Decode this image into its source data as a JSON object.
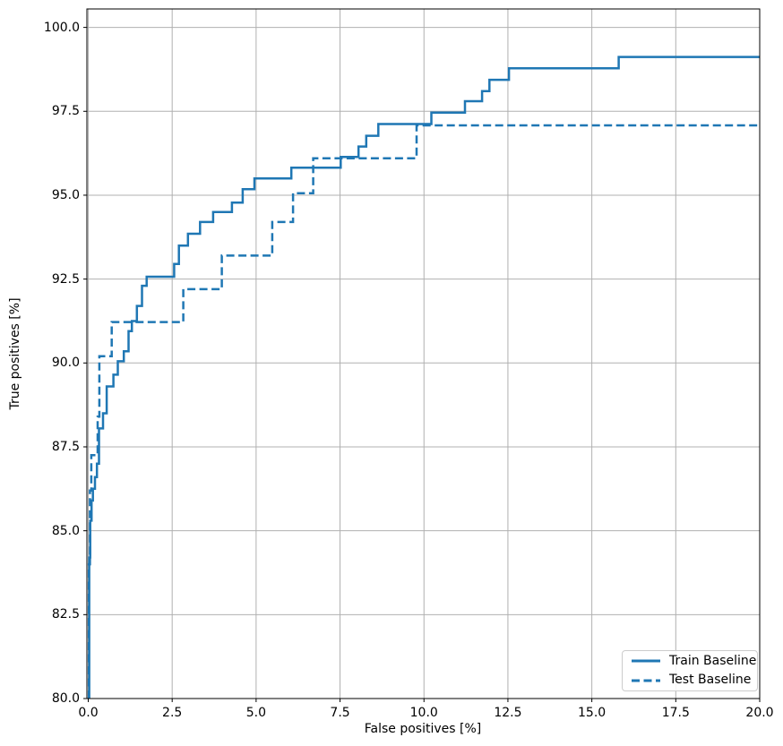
{
  "figure": {
    "bg_color": "#ffffff",
    "accent_color": "#1f77b4",
    "grid_color": "#b0b0b0",
    "spine_color": "#000000",
    "text_color": "#000000"
  },
  "chart_data": {
    "type": "line",
    "subtype": "step-roc",
    "title": "",
    "xlabel": "False positives [%]",
    "ylabel": "True positives [%]",
    "xlim": [
      -0.04,
      20.0
    ],
    "ylim": [
      80.0,
      100.55
    ],
    "xticks": [
      0.0,
      2.5,
      5.0,
      7.5,
      10.0,
      12.5,
      15.0,
      17.5,
      20.0
    ],
    "yticks": [
      80.0,
      82.5,
      85.0,
      87.5,
      90.0,
      92.5,
      95.0,
      97.5,
      100.0
    ],
    "xtick_labels": [
      "0.0",
      "2.5",
      "5.0",
      "7.5",
      "10.0",
      "12.5",
      "15.0",
      "17.5",
      "20.0"
    ],
    "ytick_labels": [
      "80.0",
      "82.5",
      "85.0",
      "87.5",
      "90.0",
      "92.5",
      "95.0",
      "97.5",
      "100.0"
    ],
    "grid": true,
    "legend_position": "lower right",
    "series": [
      {
        "name": "Train Baseline",
        "style": "solid",
        "color": "#1f77b4",
        "points": [
          [
            0.03,
            80.0
          ],
          [
            0.03,
            84.2
          ],
          [
            0.06,
            84.2
          ],
          [
            0.06,
            85.3
          ],
          [
            0.1,
            85.3
          ],
          [
            0.1,
            85.9
          ],
          [
            0.14,
            85.9
          ],
          [
            0.14,
            86.25
          ],
          [
            0.2,
            86.25
          ],
          [
            0.2,
            86.6
          ],
          [
            0.26,
            86.6
          ],
          [
            0.26,
            87.0
          ],
          [
            0.32,
            87.0
          ],
          [
            0.32,
            88.05
          ],
          [
            0.44,
            88.05
          ],
          [
            0.44,
            88.5
          ],
          [
            0.55,
            88.5
          ],
          [
            0.55,
            89.3
          ],
          [
            0.75,
            89.3
          ],
          [
            0.75,
            89.65
          ],
          [
            0.88,
            89.65
          ],
          [
            0.88,
            90.05
          ],
          [
            1.06,
            90.05
          ],
          [
            1.06,
            90.35
          ],
          [
            1.2,
            90.35
          ],
          [
            1.2,
            90.95
          ],
          [
            1.3,
            90.95
          ],
          [
            1.3,
            91.25
          ],
          [
            1.45,
            91.25
          ],
          [
            1.45,
            91.7
          ],
          [
            1.6,
            91.7
          ],
          [
            1.6,
            92.3
          ],
          [
            1.74,
            92.3
          ],
          [
            1.74,
            92.57
          ],
          [
            2.56,
            92.57
          ],
          [
            2.56,
            92.95
          ],
          [
            2.7,
            92.95
          ],
          [
            2.7,
            93.5
          ],
          [
            2.97,
            93.5
          ],
          [
            2.97,
            93.85
          ],
          [
            3.33,
            93.85
          ],
          [
            3.33,
            94.2
          ],
          [
            3.72,
            94.2
          ],
          [
            3.72,
            94.5
          ],
          [
            4.28,
            94.5
          ],
          [
            4.28,
            94.78
          ],
          [
            4.6,
            94.78
          ],
          [
            4.6,
            95.18
          ],
          [
            4.95,
            95.18
          ],
          [
            4.95,
            95.5
          ],
          [
            6.05,
            95.5
          ],
          [
            6.05,
            95.82
          ],
          [
            7.52,
            95.82
          ],
          [
            7.52,
            96.14
          ],
          [
            8.05,
            96.14
          ],
          [
            8.05,
            96.45
          ],
          [
            8.28,
            96.45
          ],
          [
            8.28,
            96.77
          ],
          [
            8.64,
            96.77
          ],
          [
            8.64,
            97.12
          ],
          [
            10.22,
            97.12
          ],
          [
            10.22,
            97.46
          ],
          [
            11.22,
            97.46
          ],
          [
            11.22,
            97.8
          ],
          [
            11.73,
            97.8
          ],
          [
            11.73,
            98.1
          ],
          [
            11.95,
            98.1
          ],
          [
            11.95,
            98.44
          ],
          [
            12.53,
            98.44
          ],
          [
            12.53,
            98.78
          ],
          [
            15.8,
            98.78
          ],
          [
            15.8,
            99.12
          ],
          [
            20.0,
            99.12
          ]
        ]
      },
      {
        "name": "Test Baseline",
        "style": "dashed",
        "color": "#1f77b4",
        "points": [
          [
            0.02,
            80.0
          ],
          [
            0.02,
            84.0
          ],
          [
            0.05,
            84.0
          ],
          [
            0.05,
            86.2
          ],
          [
            0.09,
            86.2
          ],
          [
            0.09,
            87.25
          ],
          [
            0.28,
            87.25
          ],
          [
            0.28,
            88.4
          ],
          [
            0.33,
            88.4
          ],
          [
            0.33,
            90.2
          ],
          [
            0.7,
            90.2
          ],
          [
            0.7,
            91.22
          ],
          [
            2.83,
            91.22
          ],
          [
            2.83,
            92.2
          ],
          [
            3.98,
            92.2
          ],
          [
            3.98,
            93.2
          ],
          [
            5.48,
            93.2
          ],
          [
            5.48,
            94.2
          ],
          [
            6.1,
            94.2
          ],
          [
            6.1,
            95.06
          ],
          [
            6.7,
            95.06
          ],
          [
            6.7,
            96.1
          ],
          [
            9.78,
            96.1
          ],
          [
            9.78,
            97.08
          ],
          [
            20.0,
            97.08
          ]
        ]
      }
    ]
  },
  "legend": {
    "entries": [
      {
        "label": "Train Baseline",
        "style": "solid"
      },
      {
        "label": "Test Baseline",
        "style": "dashed"
      }
    ]
  }
}
